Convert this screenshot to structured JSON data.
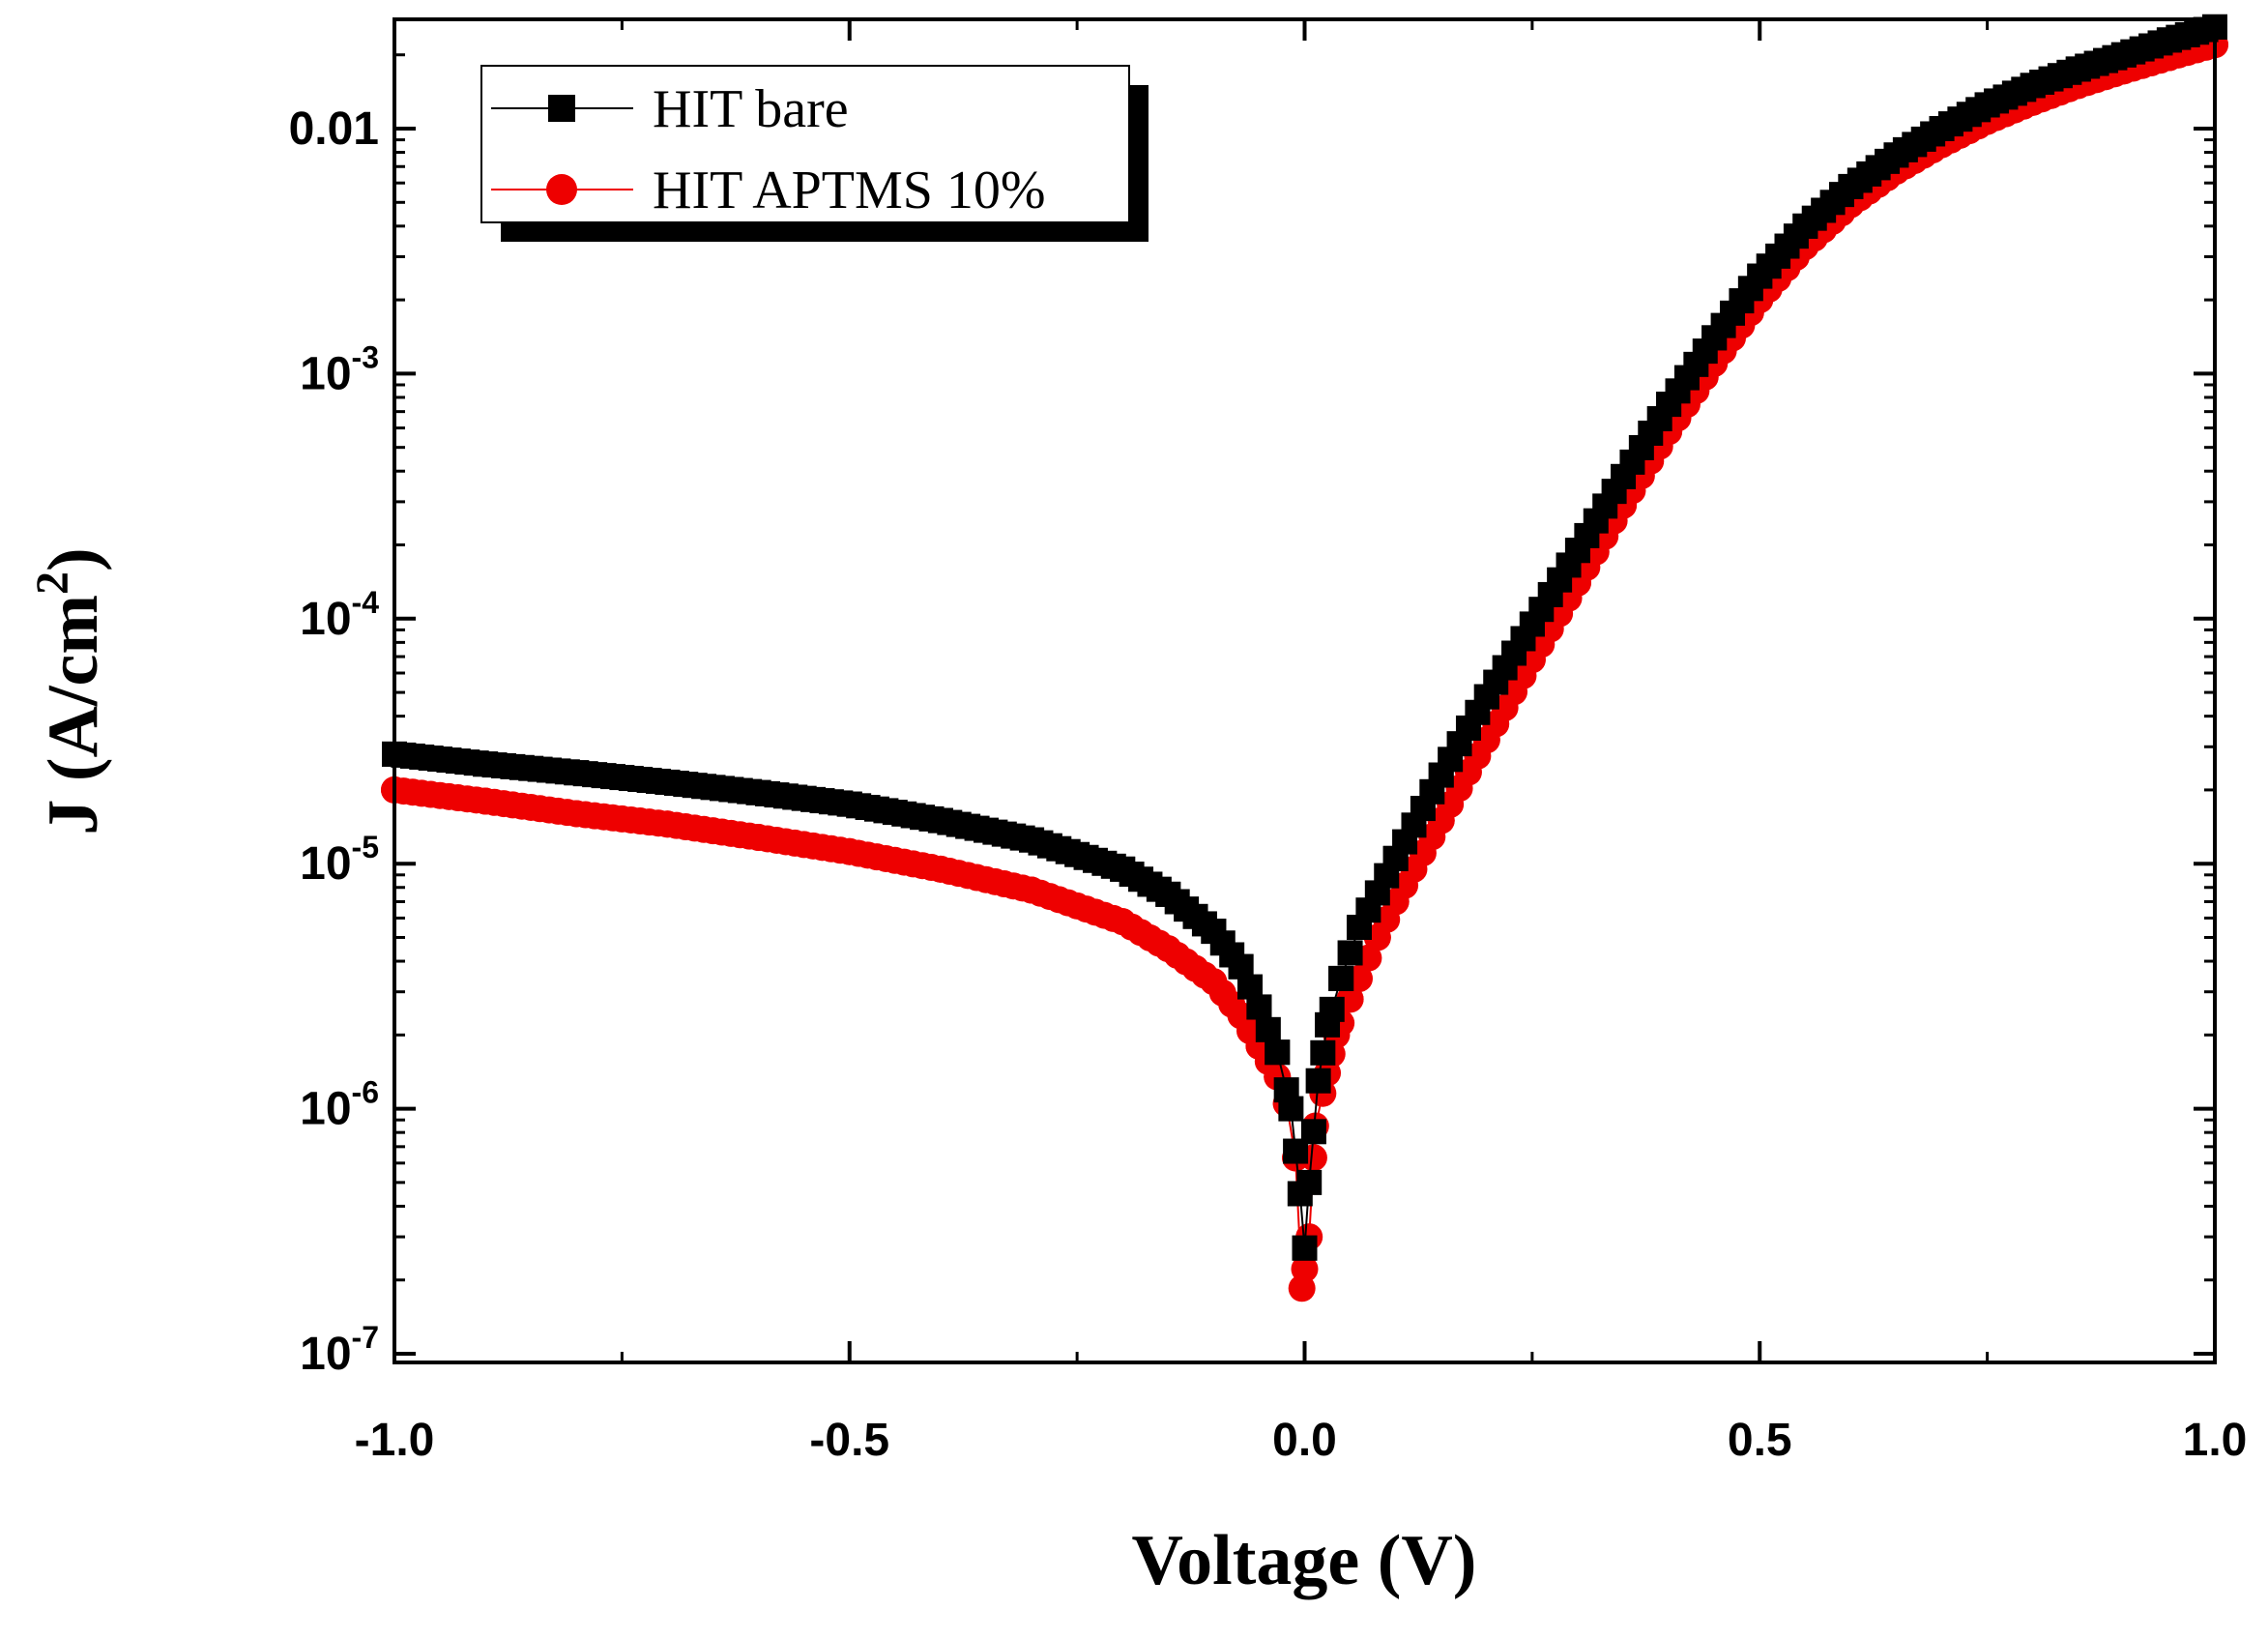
{
  "chart_data": {
    "type": "scatter",
    "xlabel": "Voltage (V)",
    "ylabel_main": "J (A/cm",
    "ylabel_sup": "2",
    "ylabel_close": ")",
    "xlim": [
      -1.0,
      1.0
    ],
    "ylim": [
      1e-07,
      0.03
    ],
    "yscale": "log",
    "x_ticks": [
      {
        "value": -1.0,
        "label": "-1.0"
      },
      {
        "value": -0.5,
        "label": "-0.5"
      },
      {
        "value": 0.0,
        "label": "0.0"
      },
      {
        "value": 0.5,
        "label": "0.5"
      },
      {
        "value": 1.0,
        "label": "1.0"
      }
    ],
    "y_ticks": [
      {
        "value": 1e-07,
        "base": "10",
        "exp": "-7"
      },
      {
        "value": 1e-06,
        "base": "10",
        "exp": "-6"
      },
      {
        "value": 1e-05,
        "base": "10",
        "exp": "-5"
      },
      {
        "value": 0.0001,
        "base": "10",
        "exp": "-4"
      },
      {
        "value": 0.001,
        "base": "10",
        "exp": "-3"
      },
      {
        "value": 0.01,
        "base": "0.01",
        "exp": ""
      }
    ],
    "legend_position": "top-left",
    "series": [
      {
        "name": "HIT bare",
        "color": "#000000",
        "marker": "square",
        "points": [
          [
            -1.0,
            2.8e-05
          ],
          [
            -0.9,
            2.55e-05
          ],
          [
            -0.8,
            2.35e-05
          ],
          [
            -0.7,
            2.15e-05
          ],
          [
            -0.6,
            1.95e-05
          ],
          [
            -0.5,
            1.75e-05
          ],
          [
            -0.4,
            1.5e-05
          ],
          [
            -0.3,
            1.25e-05
          ],
          [
            -0.2,
            9.5e-06
          ],
          [
            -0.15,
            7.5e-06
          ],
          [
            -0.1,
            5.3e-06
          ],
          [
            -0.07,
            3.8e-06
          ],
          [
            -0.05,
            2.6e-06
          ],
          [
            -0.03,
            1.7e-06
          ],
          [
            -0.015,
            1e-06
          ],
          [
            -0.005,
            4.5e-07
          ],
          [
            0.0,
            2.7e-07
          ],
          [
            0.005,
            5e-07
          ],
          [
            0.015,
            1.3e-06
          ],
          [
            0.025,
            2.2e-06
          ],
          [
            0.04,
            3.4e-06
          ],
          [
            0.06,
            5.5e-06
          ],
          [
            0.1,
            1.05e-05
          ],
          [
            0.15,
            2.3e-05
          ],
          [
            0.2,
            4.8e-05
          ],
          [
            0.25,
            9.5e-05
          ],
          [
            0.3,
            0.00019
          ],
          [
            0.35,
            0.00038
          ],
          [
            0.4,
            0.00075
          ],
          [
            0.45,
            0.0014
          ],
          [
            0.5,
            0.0025
          ],
          [
            0.55,
            0.004
          ],
          [
            0.6,
            0.0058
          ],
          [
            0.65,
            0.0078
          ],
          [
            0.7,
            0.01
          ],
          [
            0.75,
            0.0125
          ],
          [
            0.8,
            0.015
          ],
          [
            0.85,
            0.0175
          ],
          [
            0.9,
            0.02
          ],
          [
            0.95,
            0.023
          ],
          [
            1.0,
            0.026
          ]
        ]
      },
      {
        "name": "HIT APTMS 10%",
        "color": "#ee0000",
        "marker": "circle",
        "points": [
          [
            -1.0,
            2e-05
          ],
          [
            -0.9,
            1.8e-05
          ],
          [
            -0.8,
            1.6e-05
          ],
          [
            -0.7,
            1.45e-05
          ],
          [
            -0.6,
            1.28e-05
          ],
          [
            -0.5,
            1.12e-05
          ],
          [
            -0.4,
            9.5e-06
          ],
          [
            -0.3,
            7.8e-06
          ],
          [
            -0.2,
            5.8e-06
          ],
          [
            -0.15,
            4.5e-06
          ],
          [
            -0.1,
            3.3e-06
          ],
          [
            -0.07,
            2.4e-06
          ],
          [
            -0.05,
            1.8e-06
          ],
          [
            -0.03,
            1.35e-06
          ],
          [
            -0.02,
            1.05e-06
          ],
          [
            -0.01,
            6.3e-07
          ],
          [
            -0.003,
            1.85e-07
          ],
          [
            0.005,
            3e-07
          ],
          [
            0.012,
            8.5e-07
          ],
          [
            0.025,
            1.4e-06
          ],
          [
            0.035,
            2e-06
          ],
          [
            0.05,
            2.8e-06
          ],
          [
            0.08,
            5e-06
          ],
          [
            0.1,
            7e-06
          ],
          [
            0.15,
            1.5e-05
          ],
          [
            0.2,
            3.2e-05
          ],
          [
            0.25,
            6.8e-05
          ],
          [
            0.3,
            0.00014
          ],
          [
            0.35,
            0.00029
          ],
          [
            0.4,
            0.00058
          ],
          [
            0.45,
            0.0011
          ],
          [
            0.5,
            0.002
          ],
          [
            0.55,
            0.0033
          ],
          [
            0.6,
            0.0049
          ],
          [
            0.65,
            0.0067
          ],
          [
            0.7,
            0.0086
          ],
          [
            0.75,
            0.0107
          ],
          [
            0.8,
            0.0128
          ],
          [
            0.85,
            0.015
          ],
          [
            0.9,
            0.0172
          ],
          [
            0.95,
            0.0195
          ],
          [
            1.0,
            0.022
          ]
        ]
      }
    ]
  }
}
